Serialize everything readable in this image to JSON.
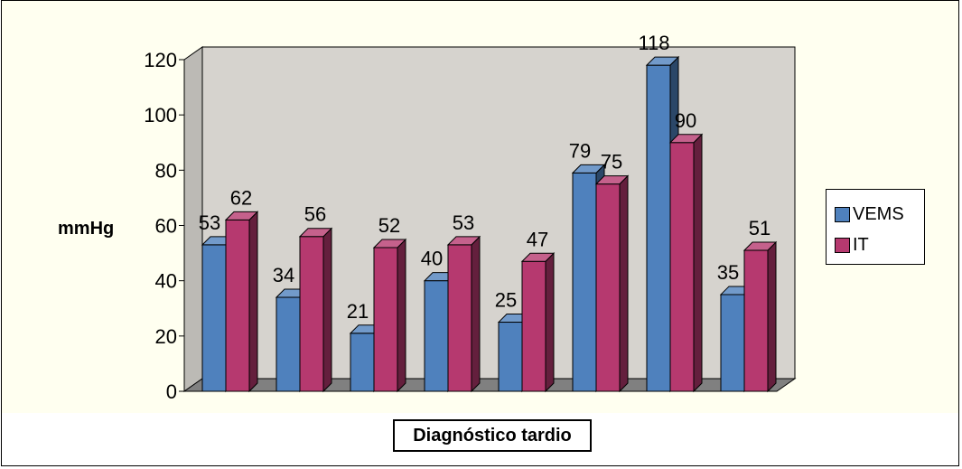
{
  "chart_data": {
    "type": "bar",
    "categories": [
      "",
      "",
      "",
      "",
      "",
      "",
      "",
      ""
    ],
    "series": [
      {
        "name": "VEMS",
        "values": [
          53,
          34,
          21,
          40,
          25,
          79,
          118,
          35
        ],
        "color": "#4f81bd"
      },
      {
        "name": "IT",
        "values": [
          62,
          56,
          52,
          53,
          47,
          75,
          90,
          51
        ],
        "color": "#b6396f"
      }
    ],
    "ylabel": "mmHg",
    "xlabel": "Diagnóstico tardio",
    "ylim": [
      0,
      120
    ],
    "yticks": [
      "0",
      "20",
      "40",
      "60",
      "80",
      "100",
      "120"
    ],
    "legend_position": "right",
    "grid": false,
    "style": "3d-clustered-column",
    "wall_color": "#d6d3ce",
    "plot_background": "#fffff0"
  }
}
